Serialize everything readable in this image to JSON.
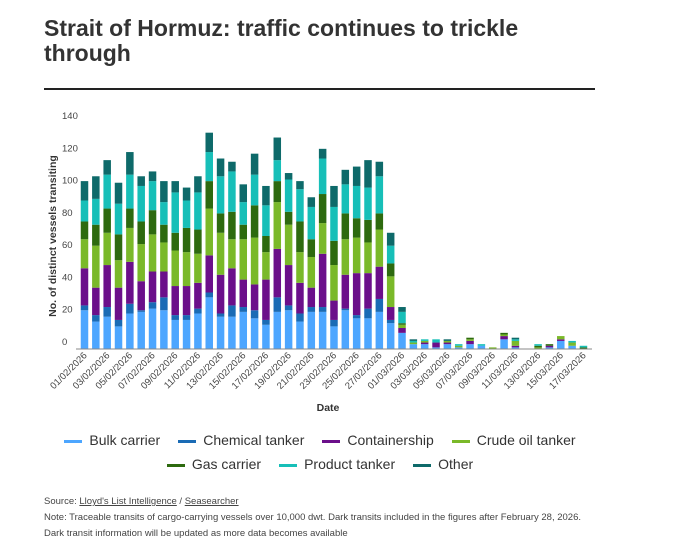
{
  "header": {
    "title": "Strait of Hormuz: traffic continues to trickle through"
  },
  "chart_data": {
    "type": "bar",
    "stacked": true,
    "xlabel": "Date",
    "ylabel": "No. of distinct vessels transiting",
    "ylim": [
      0,
      140
    ],
    "yticks": [
      0,
      20,
      40,
      60,
      80,
      100,
      120,
      140
    ],
    "legend_placement": "bottom",
    "categories": [
      "01/02/2026",
      "02/02/2026",
      "03/02/2026",
      "04/02/2026",
      "05/02/2026",
      "06/02/2026",
      "07/02/2026",
      "08/02/2026",
      "09/02/2026",
      "10/02/2026",
      "11/02/2026",
      "12/02/2026",
      "13/02/2026",
      "14/02/2026",
      "15/02/2026",
      "16/02/2026",
      "17/02/2026",
      "18/02/2026",
      "19/02/2026",
      "20/02/2026",
      "21/02/2026",
      "22/02/2026",
      "23/02/2026",
      "24/02/2026",
      "25/02/2026",
      "26/02/2026",
      "27/02/2026",
      "28/02/2026",
      "01/03/2026",
      "02/03/2026",
      "03/03/2026",
      "04/03/2026",
      "05/03/2026",
      "06/03/2026",
      "07/03/2026",
      "08/03/2026",
      "09/03/2026",
      "10/03/2026",
      "11/03/2026",
      "12/03/2026",
      "13/03/2026",
      "14/03/2026",
      "15/03/2026",
      "16/03/2026",
      "17/03/2026"
    ],
    "tick_labels": [
      "01/02/2026",
      "03/02/2026",
      "05/02/2026",
      "07/02/2026",
      "09/02/2026",
      "11/02/2026",
      "13/02/2026",
      "15/02/2026",
      "17/02/2026",
      "19/02/2026",
      "21/02/2026",
      "23/02/2026",
      "25/02/2026",
      "27/02/2026",
      "01/03/2026",
      "03/03/2026",
      "05/03/2026",
      "07/03/2026",
      "09/03/2026",
      "11/03/2026",
      "13/03/2026",
      "15/03/2026",
      "17/03/2026"
    ],
    "series": [
      {
        "name": "Bulk carrier",
        "color": "#4da6ff",
        "values": [
          24,
          17,
          20,
          14,
          22,
          23,
          25,
          24,
          18,
          18,
          22,
          32,
          20,
          20,
          23,
          19,
          15,
          23,
          24,
          17,
          23,
          23,
          14,
          24,
          19,
          19,
          23,
          16,
          10,
          3,
          3,
          1,
          3,
          1,
          3,
          2,
          0,
          6,
          1,
          0,
          0,
          1,
          5,
          2,
          0
        ]
      },
      {
        "name": "Chemical tanker",
        "color": "#1a6bb5",
        "values": [
          3,
          4,
          6,
          4,
          6,
          1,
          4,
          8,
          3,
          3,
          3,
          3,
          2,
          7,
          3,
          5,
          3,
          9,
          3,
          5,
          3,
          3,
          4,
          1,
          2,
          6,
          8,
          2,
          0,
          0,
          0,
          0,
          0,
          0,
          0,
          0,
          0,
          0,
          0,
          0,
          0,
          0,
          0,
          0,
          0
        ]
      },
      {
        "name": "Containership",
        "color": "#6b0f8a",
        "values": [
          23,
          17,
          26,
          20,
          26,
          18,
          19,
          16,
          18,
          18,
          16,
          23,
          24,
          23,
          17,
          16,
          25,
          30,
          25,
          19,
          12,
          33,
          12,
          21,
          26,
          22,
          20,
          8,
          3,
          0,
          1,
          3,
          1,
          0,
          2,
          0,
          0,
          2,
          1,
          0,
          0,
          1,
          1,
          0,
          0
        ]
      },
      {
        "name": "Crude oil tanker",
        "color": "#7ab929",
        "values": [
          18,
          26,
          20,
          17,
          21,
          23,
          23,
          18,
          22,
          21,
          18,
          29,
          26,
          18,
          25,
          29,
          17,
          29,
          25,
          19,
          19,
          19,
          22,
          22,
          22,
          19,
          23,
          19,
          2,
          1,
          1,
          0,
          1,
          1,
          1,
          0,
          1,
          1,
          3,
          0,
          1,
          0,
          2,
          2,
          0
        ]
      },
      {
        "name": "Gas carrier",
        "color": "#2d6a0f",
        "values": [
          11,
          13,
          15,
          16,
          12,
          14,
          15,
          11,
          11,
          15,
          15,
          17,
          12,
          17,
          9,
          20,
          10,
          13,
          8,
          19,
          11,
          18,
          15,
          16,
          12,
          14,
          10,
          8,
          1,
          0,
          0,
          0,
          0,
          0,
          1,
          0,
          0,
          1,
          0,
          0,
          1,
          1,
          0,
          0,
          1
        ]
      },
      {
        "name": "Product tanker",
        "color": "#17bfb8",
        "values": [
          13,
          16,
          21,
          19,
          21,
          22,
          18,
          14,
          25,
          17,
          23,
          18,
          23,
          25,
          14,
          19,
          19,
          13,
          20,
          20,
          20,
          22,
          21,
          18,
          20,
          20,
          23,
          11,
          7,
          1,
          1,
          2,
          0,
          1,
          0,
          1,
          0,
          0,
          1,
          0,
          1,
          0,
          0,
          1,
          1
        ]
      },
      {
        "name": "Other",
        "color": "#0e6a6a",
        "values": [
          12,
          14,
          9,
          13,
          14,
          6,
          6,
          13,
          7,
          8,
          10,
          12,
          11,
          6,
          11,
          13,
          12,
          14,
          4,
          5,
          6,
          6,
          13,
          9,
          12,
          17,
          9,
          8,
          3,
          1,
          0,
          0,
          1,
          0,
          0,
          0,
          0,
          0,
          1,
          0,
          0,
          0,
          0,
          0,
          0
        ]
      }
    ]
  },
  "footer": {
    "source_prefix": "Source: ",
    "source_link1": "Lloyd's List Intelligence",
    "source_sep": " / ",
    "source_link2": "Seasearcher",
    "note_line1": "Note: Traceable transits of cargo-carrying vessels over 10,000 dwt. Dark transits included in the figures after February 28, 2026.",
    "note_line2": "Dark transit information will be updated as more data becomes available"
  }
}
